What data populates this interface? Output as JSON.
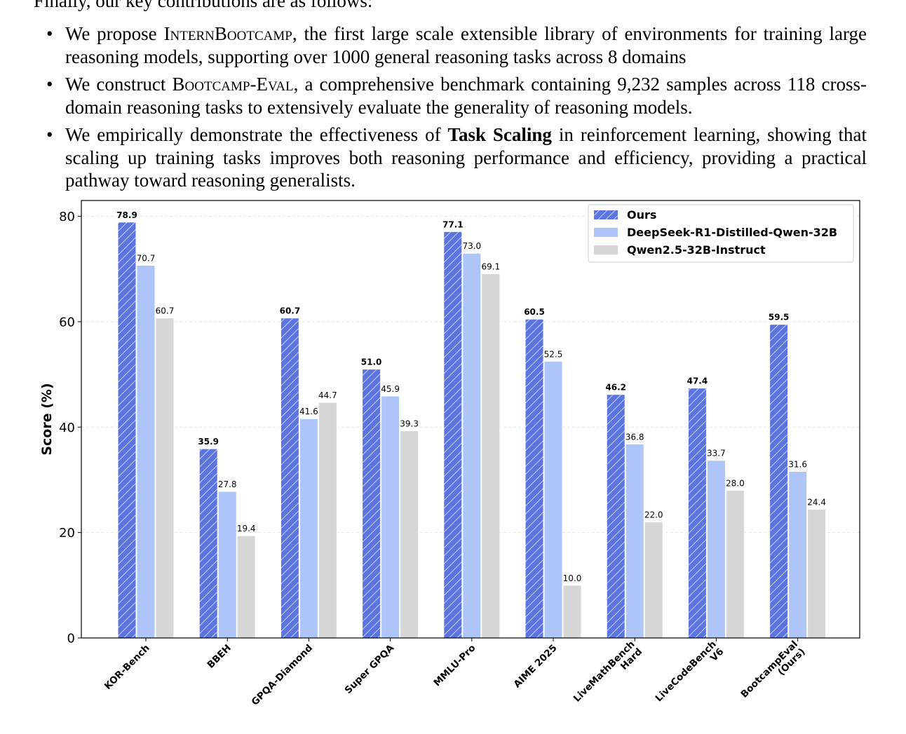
{
  "text": {
    "cutoff_line": "Finally, our key contributions are as follows:",
    "bullet1": {
      "pre": "We propose ",
      "name_1": "Intern",
      "name_2": "Bootcamp",
      "post": ", the first large scale extensible library of environments for training large reasoning models, supporting over 1000 general reasoning tasks across 8 domains"
    },
    "bullet2": {
      "pre": "We construct ",
      "name_1": "Bootcamp",
      "name_sep": "-",
      "name_2": "Eval",
      "post": ", a comprehensive benchmark containing 9,232 samples across 118 cross-domain reasoning tasks to extensively evaluate the generality of reasoning models."
    },
    "bullet3": {
      "pre": "We empirically demonstrate the effectiveness of ",
      "bold": "Task Scaling",
      "post": " in reinforcement learning, showing that scaling up training tasks improves both reasoning performance and efficiency, providing a practical pathway toward reasoning generalists."
    }
  },
  "chart_data": {
    "type": "bar",
    "ylabel": "Score (%)",
    "xlabel": "",
    "ylim": [
      0,
      83
    ],
    "yticks": [
      0,
      20,
      40,
      60,
      80
    ],
    "grid": "horizontal dashed",
    "legend_position": "top-right",
    "categories": [
      [
        "KOR-Bench"
      ],
      [
        "BBEH"
      ],
      [
        "GPQA-Diamond"
      ],
      [
        "Super GPQA"
      ],
      [
        "MMLU-Pro"
      ],
      [
        "AIME 2025"
      ],
      [
        "LiveMathBench",
        "Hard"
      ],
      [
        "LiveCodeBench",
        "V6"
      ],
      [
        "BootcampEval",
        "(Ours)"
      ]
    ],
    "series": [
      {
        "name": "Ours",
        "color": "#5b74e0",
        "hatched": true,
        "bold_labels": true,
        "values": [
          78.9,
          35.9,
          60.7,
          51.0,
          77.1,
          60.5,
          46.2,
          47.4,
          59.5
        ]
      },
      {
        "name": "DeepSeek-R1-Distilled-Qwen-32B",
        "color": "#aec5fa",
        "hatched": false,
        "bold_labels": false,
        "values": [
          70.7,
          27.8,
          41.6,
          45.9,
          73.0,
          52.5,
          36.8,
          33.7,
          31.6
        ]
      },
      {
        "name": "Qwen2.5-32B-Instruct",
        "color": "#d6d6d6",
        "hatched": false,
        "bold_labels": false,
        "values": [
          60.7,
          19.4,
          44.7,
          39.3,
          69.1,
          10.0,
          22.0,
          28.0,
          24.4
        ]
      }
    ]
  }
}
